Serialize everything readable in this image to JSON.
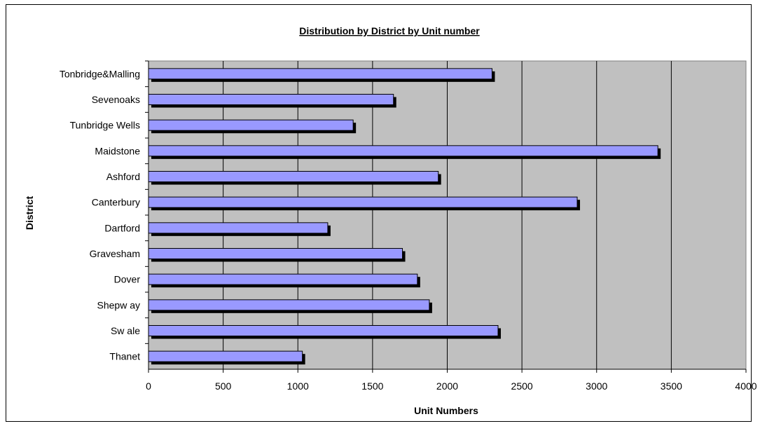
{
  "chart_data": {
    "type": "bar",
    "orientation": "horizontal",
    "title": "Distribution by District by Unit number",
    "xlabel": "Unit Numbers",
    "ylabel": "District",
    "categories": [
      "Tonbridge&Malling",
      "Sevenoaks",
      "Tunbridge Wells",
      "Maidstone",
      "Ashford",
      "Canterbury",
      "Dartford",
      "Gravesham",
      "Dover",
      "Shepw ay",
      "Sw ale",
      "Thanet"
    ],
    "values": [
      2300,
      1640,
      1370,
      3410,
      1940,
      2870,
      1200,
      1700,
      1800,
      1880,
      2340,
      1030
    ],
    "xlim": [
      0,
      4000
    ],
    "xticks": [
      "0",
      "500",
      "1000",
      "1500",
      "2000",
      "2500",
      "3000",
      "3500",
      "4000"
    ],
    "grid": "vertical",
    "colors": {
      "plot_background": "#c0c0c0",
      "bar_fill": "#9999ff",
      "bar_shadow": "#000000",
      "gridline": "#000000"
    }
  }
}
